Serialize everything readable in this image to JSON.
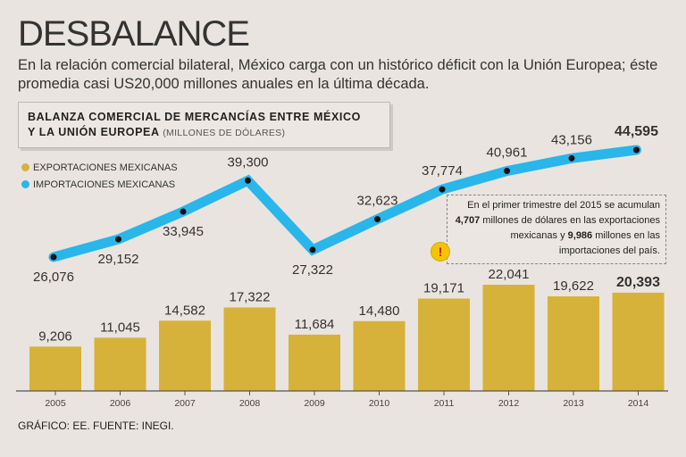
{
  "headline": "DESBALANCE",
  "subtitle": "En la relación comercial bilateral, México carga con un histórico déficit con la Unión Europea; éste promedia casi US20,000 millones anuales en la última década.",
  "chart_box": {
    "title_line1": "BALANZA COMERCIAL DE MERCANCÍAS ENTRE MÉXICO",
    "title_line2": "Y LA UNIÓN EUROPEA",
    "units": "(MILLONES DE DÓLARES)"
  },
  "legend": {
    "exports_label": "EXPORTACIONES MEXICANAS",
    "imports_label": "IMPORTACIONES MEXICANAS"
  },
  "colors": {
    "exports": "#d7b23a",
    "imports": "#29b6ea",
    "background": "#e9e4df"
  },
  "note": {
    "text": "En el primer trimestre del 2015 se acumulan 4,707 millones de dólares en las exportaciones mexicanas y 9,986 millones en las importaciones del país.",
    "icon": "alert-icon",
    "icon_glyph": "!"
  },
  "source": "GRÁFICO: EE. FUENTE: INEGI.",
  "chart_data": {
    "type": "bar+line",
    "title": "Balanza comercial de mercancías entre México y la Unión Europea",
    "ylabel": "Millones de dólares",
    "categories": [
      "2005",
      "2006",
      "2007",
      "2008",
      "2009",
      "2010",
      "2011",
      "2012",
      "2013",
      "2014"
    ],
    "series": [
      {
        "name": "Exportaciones mexicanas",
        "type": "bar",
        "values": [
          9206,
          11045,
          14582,
          17322,
          11684,
          14480,
          19171,
          22041,
          19622,
          20393
        ],
        "labels": [
          "9,206",
          "11,045",
          "14,582",
          "17,322",
          "11,684",
          "14,480",
          "19,171",
          "22,041",
          "19,622",
          "20,393"
        ]
      },
      {
        "name": "Importaciones mexicanas",
        "type": "line",
        "values": [
          26076,
          29152,
          33945,
          39300,
          27322,
          32623,
          37774,
          40961,
          43156,
          44595
        ],
        "labels": [
          "26,076",
          "29,152",
          "33,945",
          "39,300",
          "27,322",
          "32,623",
          "37,774",
          "40,961",
          "43,156",
          "44,595"
        ]
      }
    ],
    "highlight_last": true
  }
}
